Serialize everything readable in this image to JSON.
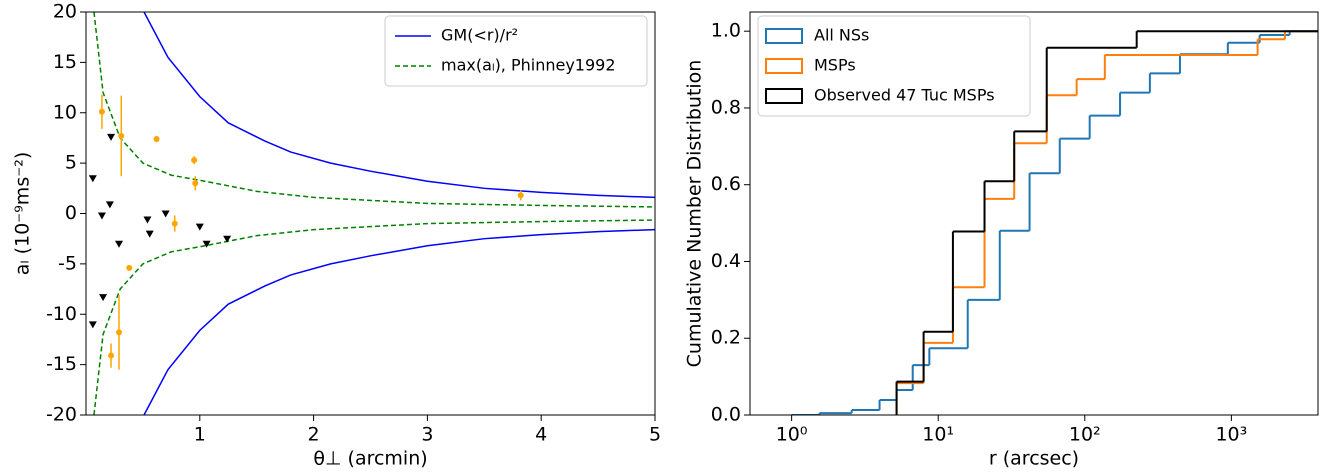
{
  "chart_data": [
    {
      "type": "line",
      "xlabel": "θ⊥ (arcmin)",
      "ylabel": "aₗ (10⁻⁹ms⁻²)",
      "xlim": [
        0,
        5
      ],
      "ylim": [
        -20,
        20
      ],
      "xticks": [
        1,
        2,
        3,
        4,
        5
      ],
      "yticks": [
        -20,
        -15,
        -10,
        -5,
        0,
        5,
        10,
        15,
        20
      ],
      "legend": "upper right",
      "series": [
        {
          "name": "GM(<r)/r²",
          "color": "#0000ff",
          "style": "solid",
          "x": [
            0.51,
            0.72,
            1,
            1.25,
            1.57,
            1.8,
            2.15,
            2.5,
            3,
            3.5,
            4,
            4.5,
            5
          ],
          "values": [
            20,
            15.5,
            11.6,
            9,
            7.2,
            6.1,
            5.0,
            4.2,
            3.2,
            2.5,
            2.1,
            1.8,
            1.6
          ]
        },
        {
          "color": "#0000ff",
          "style": "solid",
          "x": [
            0.51,
            0.72,
            1,
            1.25,
            1.57,
            1.8,
            2.15,
            2.5,
            3,
            3.5,
            4,
            4.5,
            5
          ],
          "values": [
            -20,
            -15.5,
            -11.6,
            -9,
            -7.2,
            -6.1,
            -5.0,
            -4.2,
            -3.2,
            -2.5,
            -2.1,
            -1.8,
            -1.6
          ]
        },
        {
          "name": "max(aₗ), Phinney1992",
          "color": "#008000",
          "style": "dashed",
          "x": [
            0.07,
            0.15,
            0.3,
            0.5,
            0.75,
            1,
            1.5,
            2,
            3,
            4,
            5
          ],
          "values": [
            20,
            12,
            7.5,
            5,
            3.8,
            3.3,
            2.2,
            1.6,
            1.0,
            0.8,
            0.65
          ]
        },
        {
          "color": "#008000",
          "style": "dashed",
          "x": [
            0.07,
            0.15,
            0.3,
            0.5,
            0.75,
            1,
            1.5,
            2,
            3,
            4,
            5
          ],
          "values": [
            -20,
            -12,
            -7.5,
            -5,
            -3.8,
            -3.3,
            -2.2,
            -1.6,
            -1.0,
            -0.8,
            -0.65
          ]
        },
        {
          "color": "#ffa500",
          "marker": "dot",
          "x": [
            0.14,
            0.31,
            0.62,
            0.95,
            0.96,
            0.78,
            0.38,
            0.22,
            0.29,
            3.82
          ],
          "values": [
            10.1,
            7.7,
            7.4,
            5.3,
            3.0,
            -1.0,
            -5.4,
            -14.1,
            -11.8,
            1.8
          ],
          "errors": [
            1.7,
            4,
            0.3,
            0.4,
            0.7,
            0.8,
            0.2,
            1.2,
            3.7,
            0.5
          ]
        },
        {
          "color": "#000000",
          "marker": "triangle",
          "x": [
            0.06,
            0.22,
            0.14,
            0.21,
            0.29,
            0.54,
            0.56,
            0.7,
            1.0,
            1.06,
            1.24,
            0.15,
            0.06
          ],
          "values": [
            3.5,
            7.6,
            -0.2,
            0.9,
            -3.0,
            -0.6,
            -2.0,
            0,
            -1.3,
            -3.0,
            -2.5,
            -8.3,
            -11
          ]
        }
      ]
    },
    {
      "type": "step",
      "xlabel": "r (arcsec)",
      "ylabel": "Cumulative Number Distribution",
      "xscale": "log",
      "xlim": [
        0.52,
        3900
      ],
      "ylim": [
        0,
        1.05
      ],
      "xticks": [
        {
          "value": 1,
          "label": "10⁰"
        },
        {
          "value": 10,
          "label": "10¹"
        },
        {
          "value": 100,
          "label": "10²"
        },
        {
          "value": 1000,
          "label": "10³"
        }
      ],
      "yticks": [
        {
          "value": 0,
          "label": "0.0"
        },
        0.2,
        0.4,
        0.6,
        0.8,
        {
          "value": 1,
          "label": "1.0"
        }
      ],
      "legend": "upper left",
      "series": [
        {
          "name": "All NSs",
          "color": "#1f77b4",
          "x": [
            1,
            1.55,
            2.57,
            3.98,
            5.2,
            6.7,
            8.7,
            15.9,
            26.3,
            42,
            67.5,
            108,
            174,
            278,
            446,
            946,
            1560,
            2500
          ],
          "values": [
            0,
            0.005,
            0.013,
            0.039,
            0.065,
            0.13,
            0.174,
            0.3,
            0.48,
            0.63,
            0.72,
            0.78,
            0.84,
            0.89,
            0.94,
            0.97,
            0.99,
            1.0
          ]
        },
        {
          "name": "MSPs",
          "color": "#ff7f0e",
          "x": [
            5.2,
            7.95,
            12.6,
            20.7,
            33,
            55,
            88,
            137,
            1510,
            2320
          ],
          "values": [
            0.083,
            0.188,
            0.333,
            0.563,
            0.708,
            0.833,
            0.875,
            0.938,
            0.979,
            1.0
          ]
        },
        {
          "name": "Observed 47 Tuc MSPs",
          "color": "#000000",
          "x": [
            5.2,
            7.95,
            12.6,
            20.7,
            33,
            55,
            226
          ],
          "values": [
            0.087,
            0.217,
            0.478,
            0.609,
            0.739,
            0.957,
            1.0
          ]
        }
      ]
    }
  ]
}
